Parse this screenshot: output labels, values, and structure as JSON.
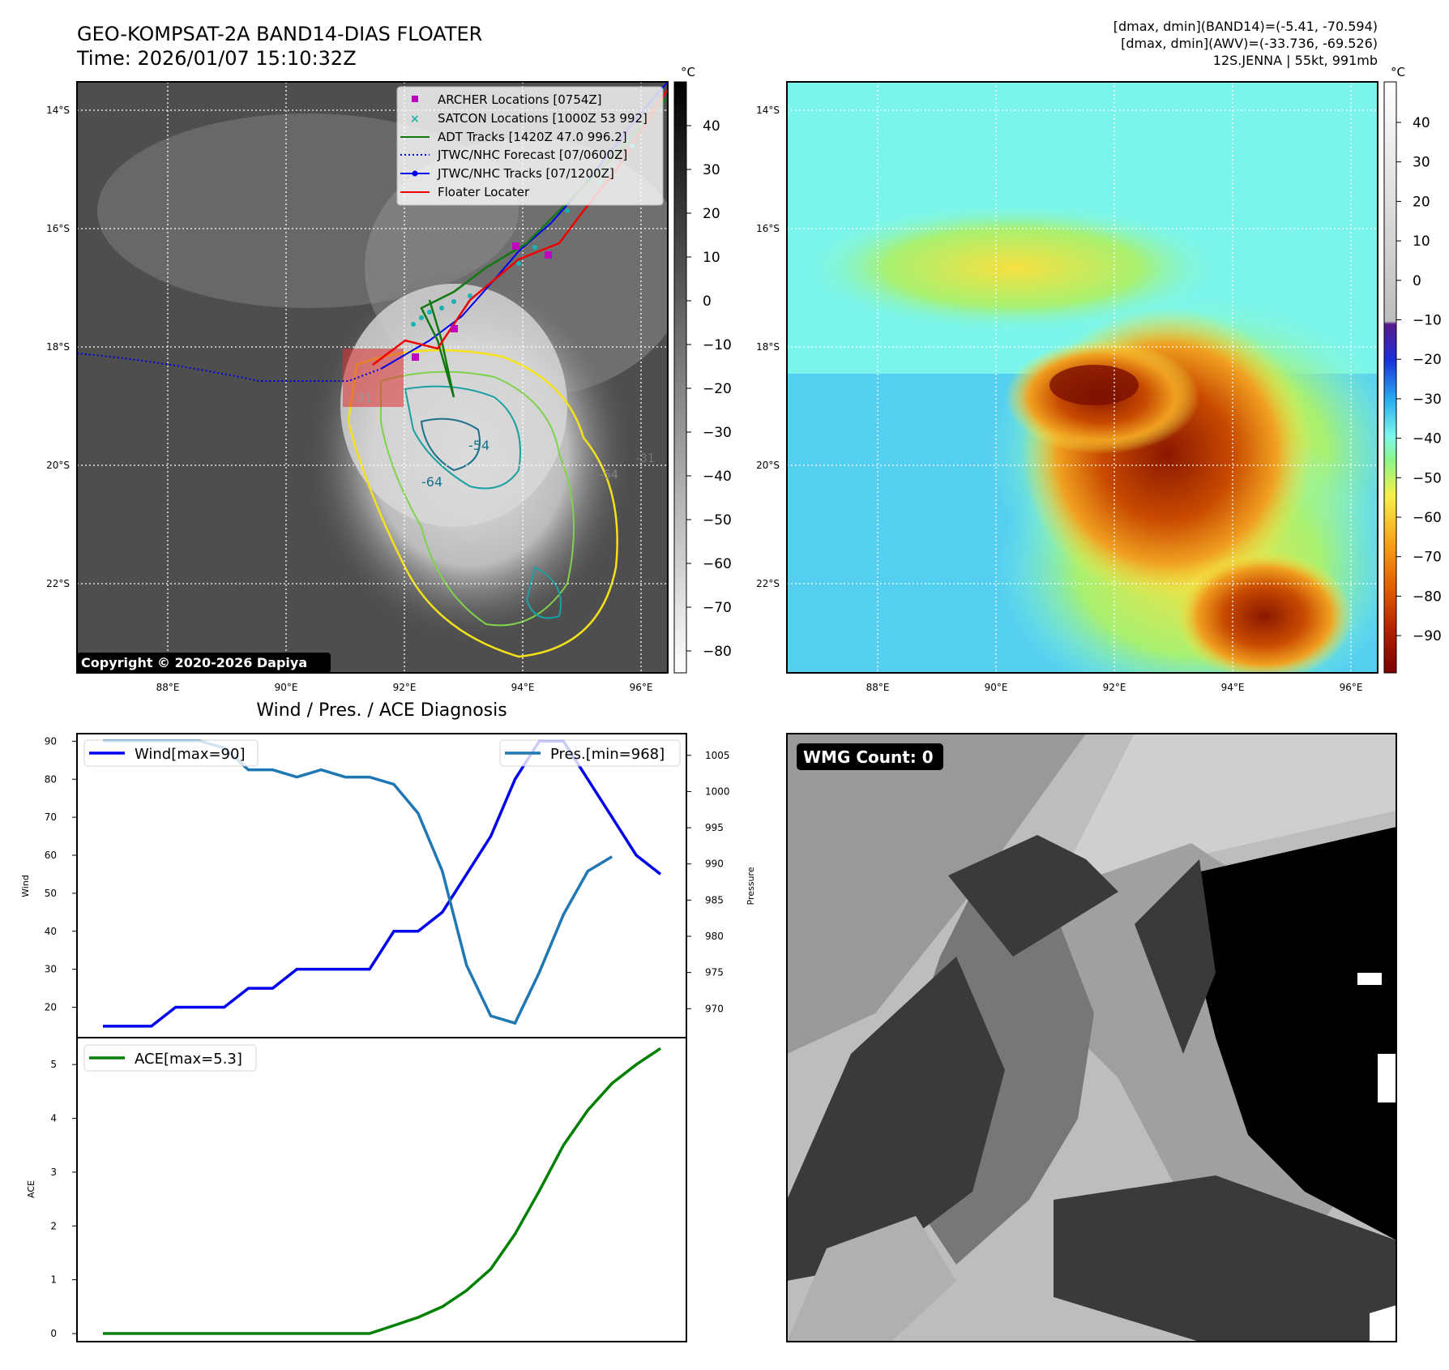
{
  "panel_tl": {
    "title_line1": "GEO-KOMPSAT-2A BAND14-DIAS FLOATER",
    "title_line2": "Time: 2026/01/07 15:10:32Z",
    "copyright": "Copyright © 2020-2026 Dapiya",
    "colorbar_unit": "°C",
    "colorbar_ticks": [
      "40",
      "30",
      "20",
      "10",
      "0",
      "−10",
      "−20",
      "−30",
      "−40",
      "−50",
      "−60",
      "−70",
      "−80"
    ],
    "lat_labels": [
      "14°S",
      "16°S",
      "18°S",
      "20°S",
      "22°S"
    ],
    "lon_labels": [
      "88°E",
      "90°E",
      "92°E",
      "94°E",
      "96°E"
    ],
    "contour_labels": [
      "-54",
      "-64",
      "-31",
      "-31",
      "-54"
    ],
    "legend": [
      {
        "label": "ARCHER Locations [0754Z]",
        "color": "#bf00bf",
        "marker": "square"
      },
      {
        "label": "SATCON Locations [1000Z 53 992]",
        "color": "#17b3b3",
        "marker": "x"
      },
      {
        "label": "ADT Tracks [1420Z 47.0 996.2]",
        "color": "#117711",
        "marker": "line"
      },
      {
        "label": "JTWC/NHC Forecast [07/0600Z]",
        "color": "#0000dd",
        "marker": "dotted"
      },
      {
        "label": "JTWC/NHC Tracks [07/1200Z]",
        "color": "#0000ee",
        "marker": "dotline"
      },
      {
        "label": "Floater Locater",
        "color": "#ee0000",
        "marker": "line"
      }
    ]
  },
  "panel_tr": {
    "info_line1": "[dmax, dmin](BAND14)=(-5.41, -70.594)",
    "info_line2": "[dmax, dmin](AWV)=(-33.736, -69.526)",
    "info_line3": "12S.JENNA | 55kt, 991mb",
    "colorbar_unit": "°C",
    "colorbar_ticks": [
      "40",
      "30",
      "20",
      "10",
      "0",
      "−10",
      "−20",
      "−30",
      "−40",
      "−50",
      "−60",
      "−70",
      "−80",
      "−90"
    ],
    "lat_labels": [
      "14°S",
      "16°S",
      "18°S",
      "20°S",
      "22°S"
    ],
    "lon_labels": [
      "88°E",
      "90°E",
      "92°E",
      "94°E",
      "96°E"
    ]
  },
  "panel_br": {
    "badge": "WMG Count: 0"
  },
  "chart_data": [
    {
      "type": "line",
      "title": "Wind / Pres. / ACE Diagnosis",
      "ylabel": "Wind",
      "y2label": "Pressure",
      "ylim": [
        12,
        92
      ],
      "y2lim": [
        966,
        1008
      ],
      "yticks": [
        20,
        30,
        40,
        50,
        60,
        70,
        80,
        90
      ],
      "y2ticks": [
        970,
        975,
        980,
        985,
        990,
        995,
        1000,
        1005
      ],
      "series": [
        {
          "name": "Wind[max=90]",
          "axis": "left",
          "color": "#0000ee",
          "values": [
            15,
            15,
            15,
            20,
            20,
            20,
            25,
            25,
            30,
            30,
            30,
            30,
            40,
            40,
            45,
            55,
            65,
            80,
            90,
            90,
            80,
            70,
            60,
            55
          ]
        },
        {
          "name": "Pres.[min=968]",
          "axis": "right",
          "color": "#1f77b4",
          "values": [
            1007,
            1007,
            1007,
            1007,
            1007,
            1006,
            1003,
            1003,
            1002,
            1003,
            1002,
            1002,
            1001,
            997,
            989,
            976,
            969,
            968,
            975,
            983,
            989,
            991
          ]
        }
      ],
      "legend": [
        "upper-left",
        "upper-right"
      ]
    },
    {
      "type": "line",
      "ylabel": "ACE",
      "ylim": [
        -0.15,
        5.5
      ],
      "yticks": [
        0,
        1,
        2,
        3,
        4,
        5
      ],
      "series": [
        {
          "name": "ACE[max=5.3]",
          "color": "#008000",
          "values": [
            0,
            0,
            0,
            0,
            0,
            0,
            0,
            0,
            0,
            0,
            0,
            0,
            0.15,
            0.3,
            0.5,
            0.8,
            1.2,
            1.85,
            2.65,
            3.5,
            4.15,
            4.65,
            5.0,
            5.3
          ]
        }
      ],
      "legend": "upper-left"
    }
  ]
}
